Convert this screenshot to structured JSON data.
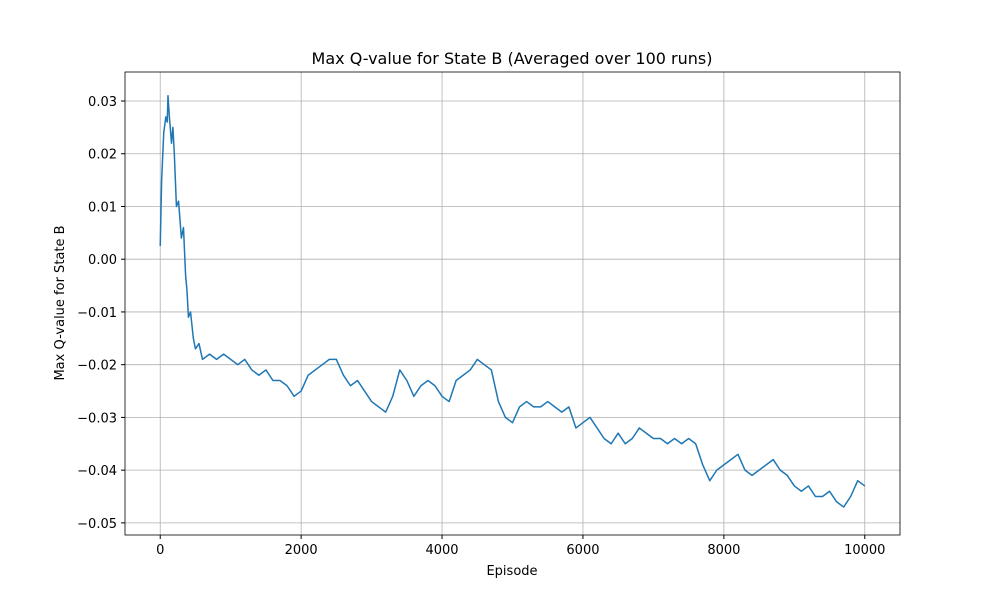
{
  "chart_data": {
    "type": "line",
    "title": "Max Q-value for State B (Averaged over 100 runs)",
    "x_label": "Episode",
    "y_label": "Max Q-value for State B",
    "x": [
      0,
      20,
      50,
      80,
      100,
      110,
      130,
      160,
      180,
      200,
      230,
      260,
      300,
      330,
      360,
      380,
      400,
      430,
      470,
      500,
      550,
      600,
      700,
      800,
      900,
      1000,
      1100,
      1200,
      1300,
      1400,
      1500,
      1600,
      1700,
      1800,
      1900,
      2000,
      2100,
      2200,
      2300,
      2400,
      2500,
      2600,
      2700,
      2800,
      2900,
      3000,
      3100,
      3200,
      3300,
      3400,
      3500,
      3600,
      3700,
      3800,
      3900,
      4000,
      4100,
      4200,
      4300,
      4400,
      4500,
      4600,
      4700,
      4800,
      4900,
      5000,
      5100,
      5200,
      5300,
      5400,
      5500,
      5600,
      5700,
      5800,
      5900,
      6000,
      6100,
      6200,
      6300,
      6400,
      6500,
      6600,
      6700,
      6800,
      6900,
      7000,
      7100,
      7200,
      7300,
      7400,
      7500,
      7600,
      7700,
      7800,
      7900,
      8000,
      8100,
      8200,
      8300,
      8400,
      8500,
      8600,
      8700,
      8800,
      8900,
      9000,
      9100,
      9200,
      9300,
      9400,
      9500,
      9600,
      9700,
      9800,
      9900,
      10000
    ],
    "series": [
      {
        "name": "Max Q-value",
        "color": "#1f77b4",
        "values": [
          0.0025,
          0.015,
          0.024,
          0.027,
          0.026,
          0.031,
          0.027,
          0.022,
          0.025,
          0.02,
          0.01,
          0.011,
          0.004,
          0.006,
          -0.003,
          -0.006,
          -0.011,
          -0.01,
          -0.015,
          -0.017,
          -0.016,
          -0.019,
          -0.018,
          -0.019,
          -0.018,
          -0.019,
          -0.02,
          -0.019,
          -0.021,
          -0.022,
          -0.021,
          -0.023,
          -0.023,
          -0.024,
          -0.026,
          -0.025,
          -0.022,
          -0.021,
          -0.02,
          -0.019,
          -0.019,
          -0.022,
          -0.024,
          -0.023,
          -0.025,
          -0.027,
          -0.028,
          -0.029,
          -0.026,
          -0.021,
          -0.023,
          -0.026,
          -0.024,
          -0.023,
          -0.024,
          -0.026,
          -0.027,
          -0.023,
          -0.022,
          -0.021,
          -0.019,
          -0.02,
          -0.021,
          -0.027,
          -0.03,
          -0.031,
          -0.028,
          -0.027,
          -0.028,
          -0.028,
          -0.027,
          -0.028,
          -0.029,
          -0.028,
          -0.032,
          -0.031,
          -0.03,
          -0.032,
          -0.034,
          -0.035,
          -0.033,
          -0.035,
          -0.034,
          -0.032,
          -0.033,
          -0.034,
          -0.034,
          -0.035,
          -0.034,
          -0.035,
          -0.034,
          -0.035,
          -0.039,
          -0.042,
          -0.04,
          -0.039,
          -0.038,
          -0.037,
          -0.04,
          -0.041,
          -0.04,
          -0.039,
          -0.038,
          -0.04,
          -0.041,
          -0.043,
          -0.044,
          -0.043,
          -0.045,
          -0.045,
          -0.044,
          -0.046,
          -0.047,
          -0.045,
          -0.042,
          -0.043
        ]
      }
    ],
    "xlim": [
      -500,
      10500
    ],
    "ylim": [
      -0.0523,
      0.0355
    ],
    "xticks": [
      0,
      2000,
      4000,
      6000,
      8000,
      10000
    ],
    "yticks": [
      {
        "value": -0.05,
        "label": "−0.05"
      },
      {
        "value": -0.04,
        "label": "−0.04"
      },
      {
        "value": -0.03,
        "label": "−0.03"
      },
      {
        "value": -0.02,
        "label": "−0.02"
      },
      {
        "value": -0.01,
        "label": "−0.01"
      },
      {
        "value": 0,
        "label": "0.00"
      },
      0.01,
      0.02,
      0.03
    ],
    "grid": true
  }
}
